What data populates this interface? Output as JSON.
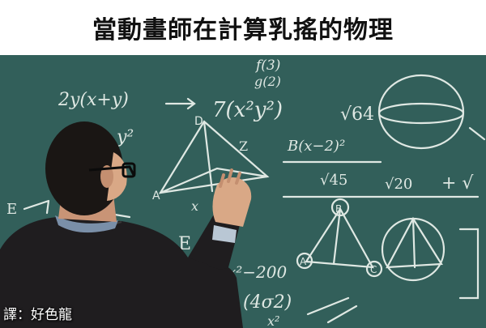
{
  "meme": {
    "caption": "當動畫師在計算乳搖的物理",
    "credit": "譯：好色龍"
  },
  "chalkboard": {
    "formulas": [
      "f(3)",
      "g(2)",
      "2y(x+y)",
      "7(x²y²)",
      "y²",
      "√64",
      "B(x−2)²",
      "√45",
      "√20",
      "E",
      "x²−200",
      "(4σ2)",
      "x²",
      "x",
      "E",
      "A",
      "B",
      "C"
    ]
  },
  "colors": {
    "chalkboard": "#2f5a55",
    "chalk": "#eef4ef",
    "jacket": "#1f1d1f",
    "hair": "#1a1614",
    "skin": "#d9a886"
  }
}
